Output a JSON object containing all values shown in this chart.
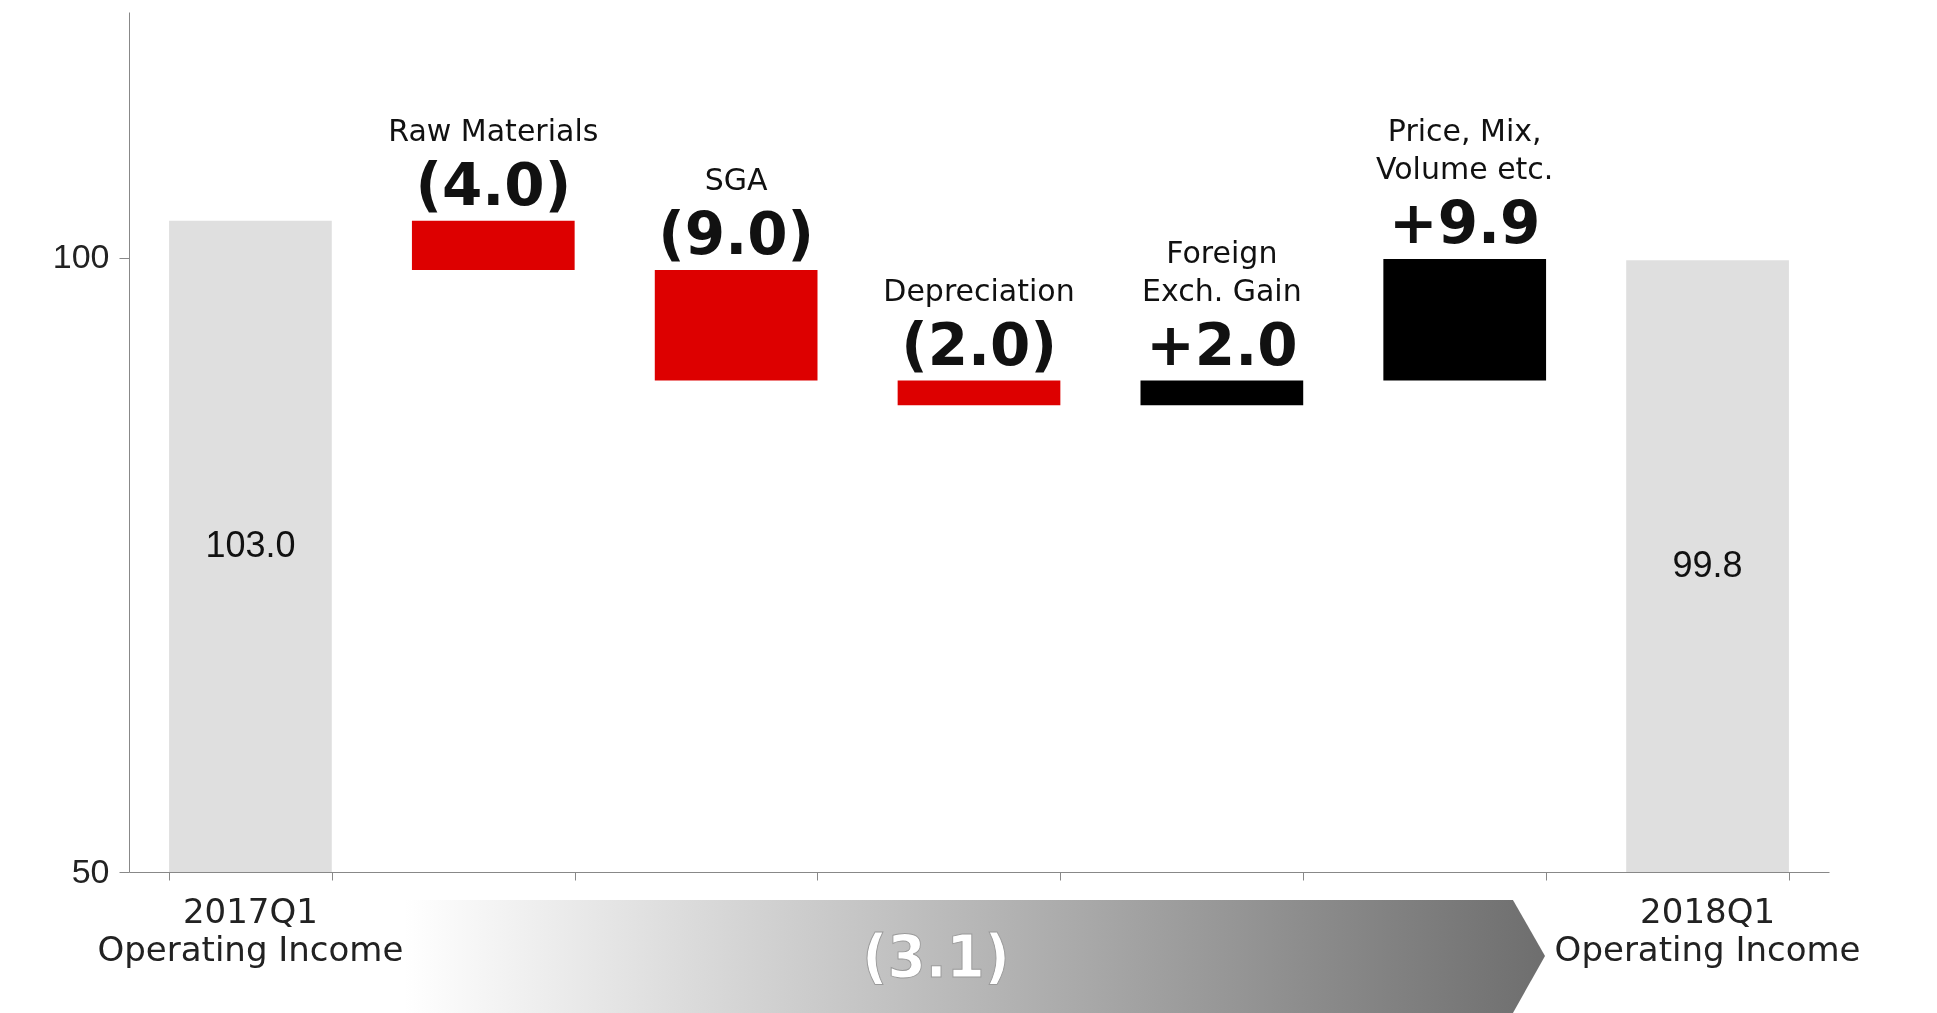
{
  "chart_data": {
    "type": "bar",
    "categories": [
      "2017Q1\nOperating Income",
      "Raw Materials",
      "SGA",
      "Depreciation",
      "Foreign\nExch. Gain",
      "Price, Mix,\nVolume etc.",
      "2018Q1\nOperating Income"
    ],
    "values": [
      103.0,
      -4.0,
      -9.0,
      -2.0,
      2.0,
      9.9,
      99.8
    ],
    "base": [
      null,
      103,
      99,
      90,
      88,
      90,
      null
    ],
    "colors": [
      "#dfdfdf",
      "#dd0000",
      "#dd0000",
      "#dd0000",
      "#000000",
      "#000000",
      "#dfdfdf"
    ],
    "value_labels": [
      "103.0",
      "(4.0)",
      "(9.0)",
      "(2.0)",
      "+2.0",
      "+9.9",
      "99.8"
    ],
    "ylim": [
      50,
      120
    ],
    "yticks": [
      50,
      100
    ],
    "grid": false,
    "annotations": [
      "(3.1)"
    ]
  }
}
